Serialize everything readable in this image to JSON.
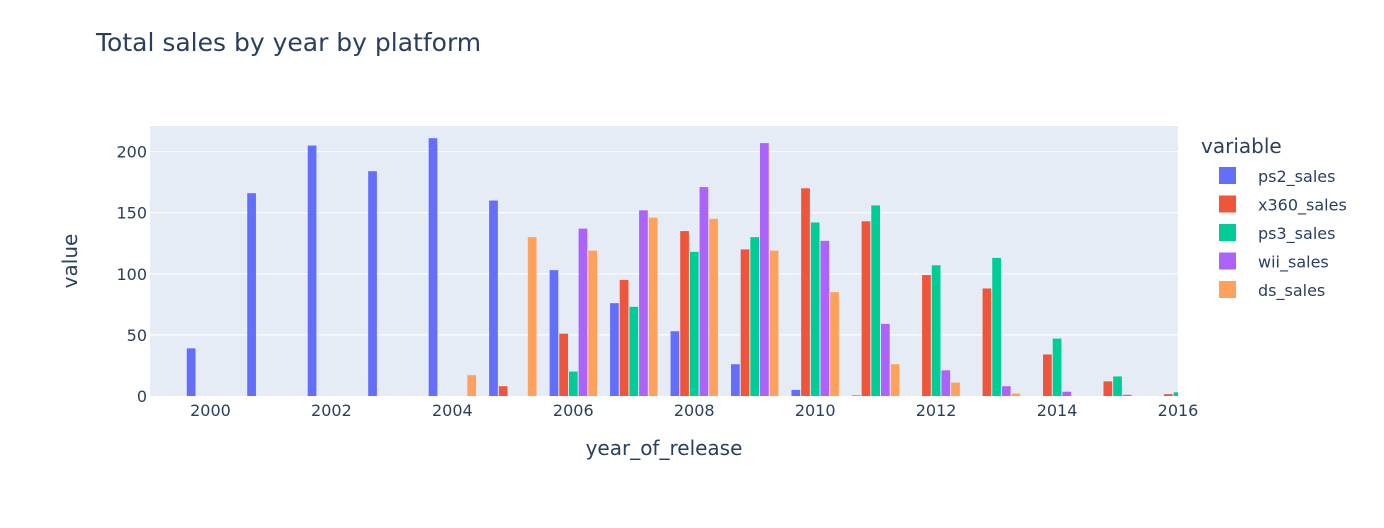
{
  "chart_data": {
    "type": "bar",
    "title": "Total sales by year by platform",
    "xlabel": "year_of_release",
    "ylabel": "value",
    "legend_title": "variable",
    "legend_position": "right",
    "xlim": [
      1999.0,
      2016.0
    ],
    "ylim": [
      0,
      221
    ],
    "x_ticks": [
      2000,
      2002,
      2004,
      2006,
      2008,
      2010,
      2012,
      2014,
      2016
    ],
    "y_ticks": [
      0,
      50,
      100,
      150,
      200
    ],
    "grid": true,
    "categories": [
      2000,
      2001,
      2002,
      2003,
      2004,
      2005,
      2006,
      2007,
      2008,
      2009,
      2010,
      2011,
      2012,
      2013,
      2014,
      2015,
      2016
    ],
    "series": [
      {
        "name": "ps2_sales",
        "color": "#636efa",
        "values": [
          39,
          166,
          205,
          184,
          211,
          160,
          103,
          76,
          53,
          26,
          5,
          0.5,
          0,
          0,
          0,
          0,
          0
        ]
      },
      {
        "name": "x360_sales",
        "color": "#ef553b",
        "values": [
          0,
          0,
          0,
          0,
          0,
          8,
          51,
          95,
          135,
          120,
          170,
          143,
          99,
          88,
          34,
          12,
          1.5
        ]
      },
      {
        "name": "ps3_sales",
        "color": "#00cc96",
        "values": [
          0,
          0,
          0,
          0,
          0,
          0,
          20,
          73,
          118,
          130,
          142,
          156,
          107,
          113,
          47,
          16,
          3
        ]
      },
      {
        "name": "wii_sales",
        "color": "#ab63fa",
        "values": [
          0,
          0,
          0,
          0,
          0,
          0,
          137,
          152,
          171,
          207,
          127,
          59,
          21,
          8,
          3.5,
          1,
          0.2
        ]
      },
      {
        "name": "ds_sales",
        "color": "#ffa15a",
        "values": [
          0,
          0,
          0,
          0,
          17,
          130,
          119,
          146,
          145,
          119,
          85,
          26,
          11,
          2,
          0,
          0,
          0
        ]
      }
    ]
  }
}
